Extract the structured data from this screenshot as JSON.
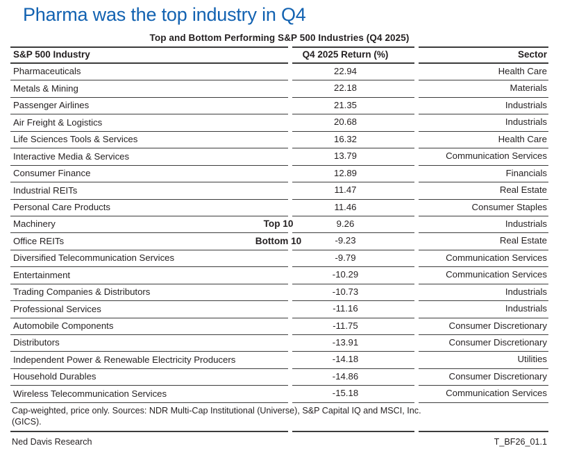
{
  "page": {
    "title": "Pharma was the top industry in Q4"
  },
  "chart_data": {
    "type": "table",
    "title": "Top and Bottom Performing S&P 500 Industries (Q4 2025)",
    "columns": [
      "S&P 500 Industry",
      "Q4 2025 Return (%)",
      "Sector"
    ],
    "rows": [
      {
        "industry": "Pharmaceuticals",
        "return": 22.94,
        "sector": "Health Care",
        "group_label": ""
      },
      {
        "industry": "Metals & Mining",
        "return": 22.18,
        "sector": "Materials",
        "group_label": ""
      },
      {
        "industry": "Passenger Airlines",
        "return": 21.35,
        "sector": "Industrials",
        "group_label": ""
      },
      {
        "industry": "Air Freight & Logistics",
        "return": 20.68,
        "sector": "Industrials",
        "group_label": ""
      },
      {
        "industry": "Life Sciences Tools & Services",
        "return": 16.32,
        "sector": "Health Care",
        "group_label": ""
      },
      {
        "industry": "Interactive Media & Services",
        "return": 13.79,
        "sector": "Communication Services",
        "group_label": ""
      },
      {
        "industry": "Consumer Finance",
        "return": 12.89,
        "sector": "Financials",
        "group_label": ""
      },
      {
        "industry": "Industrial REITs",
        "return": 11.47,
        "sector": "Real Estate",
        "group_label": ""
      },
      {
        "industry": "Personal Care Products",
        "return": 11.46,
        "sector": "Consumer Staples",
        "group_label": ""
      },
      {
        "industry": "Machinery",
        "return": 9.26,
        "sector": "Industrials",
        "group_label": "Top 10"
      },
      {
        "industry": "Office REITs",
        "return": -9.23,
        "sector": "Real Estate",
        "group_label": "Bottom 10"
      },
      {
        "industry": "Diversified Telecommunication Services",
        "return": -9.79,
        "sector": "Communication Services",
        "group_label": ""
      },
      {
        "industry": "Entertainment",
        "return": -10.29,
        "sector": "Communication Services",
        "group_label": ""
      },
      {
        "industry": "Trading Companies & Distributors",
        "return": -10.73,
        "sector": "Industrials",
        "group_label": ""
      },
      {
        "industry": "Professional Services",
        "return": -11.16,
        "sector": "Industrials",
        "group_label": ""
      },
      {
        "industry": "Automobile Components",
        "return": -11.75,
        "sector": "Consumer Discretionary",
        "group_label": ""
      },
      {
        "industry": "Distributors",
        "return": -13.91,
        "sector": "Consumer Discretionary",
        "group_label": ""
      },
      {
        "industry": "Independent Power & Renewable Electricity Producers",
        "return": -14.18,
        "sector": "Utilities",
        "group_label": ""
      },
      {
        "industry": "Household Durables",
        "return": -14.86,
        "sector": "Consumer Discretionary",
        "group_label": ""
      },
      {
        "industry": "Wireless Telecommunication Services",
        "return": -15.18,
        "sector": "Communication Services",
        "group_label": ""
      }
    ],
    "footnote_line1": "Cap-weighted, price only. Sources: NDR Multi-Cap Institutional (Universe), S&P Capital IQ and MSCI, Inc.",
    "footnote_line2": "(GICS).",
    "source_left": "Ned Davis Research",
    "source_right": "T_BF26_01.1",
    "layout": {
      "grid": "off",
      "group_split_after_row": 10
    }
  },
  "colors": {
    "title_blue": "#1262b1",
    "rule": "#3b3b3b",
    "text": "#231f20"
  }
}
